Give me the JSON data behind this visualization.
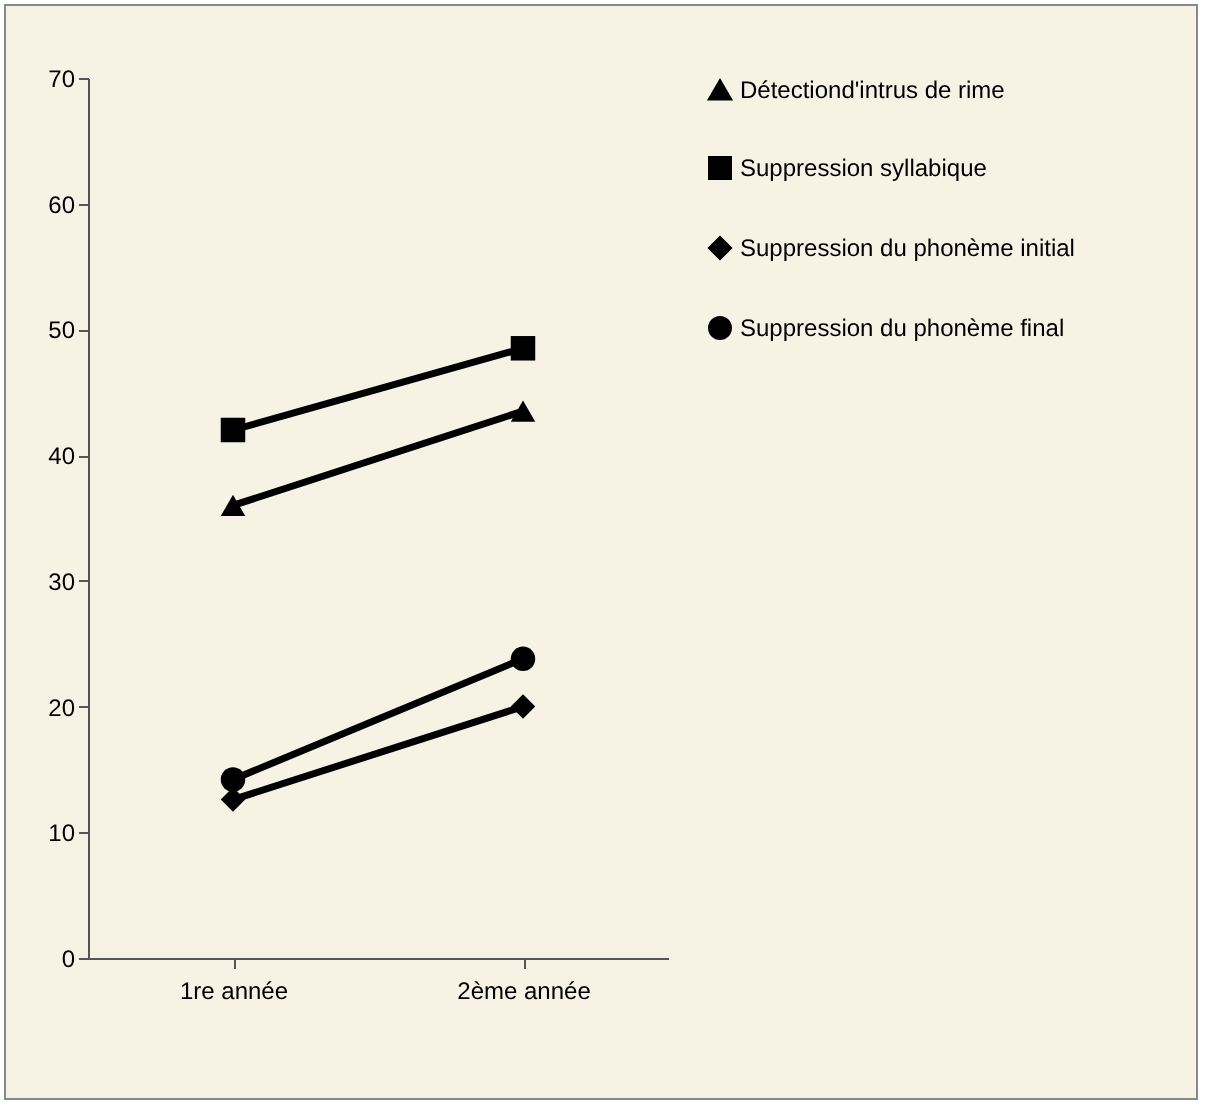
{
  "chart_data": {
    "type": "line",
    "categories": [
      "1re année",
      "2ème année"
    ],
    "series": [
      {
        "name": "Détectiond'intrus de rime",
        "color": "#000000",
        "marker": "triangle",
        "values": [
          36,
          43.5
        ]
      },
      {
        "name": "Suppression syllabique",
        "color": "#000000",
        "marker": "square",
        "values": [
          42,
          48.5
        ]
      },
      {
        "name": "Suppression du phonème initial",
        "color": "#000000",
        "marker": "diamond",
        "values": [
          12.6,
          20
        ]
      },
      {
        "name": "Suppression du phonème final",
        "color": "#000000",
        "marker": "circle",
        "values": [
          14.2,
          23.8
        ]
      }
    ],
    "ylim": [
      0,
      70
    ],
    "yticks": [
      0,
      10,
      20,
      30,
      40,
      50,
      60,
      70
    ],
    "grid": false,
    "legend": "right"
  }
}
